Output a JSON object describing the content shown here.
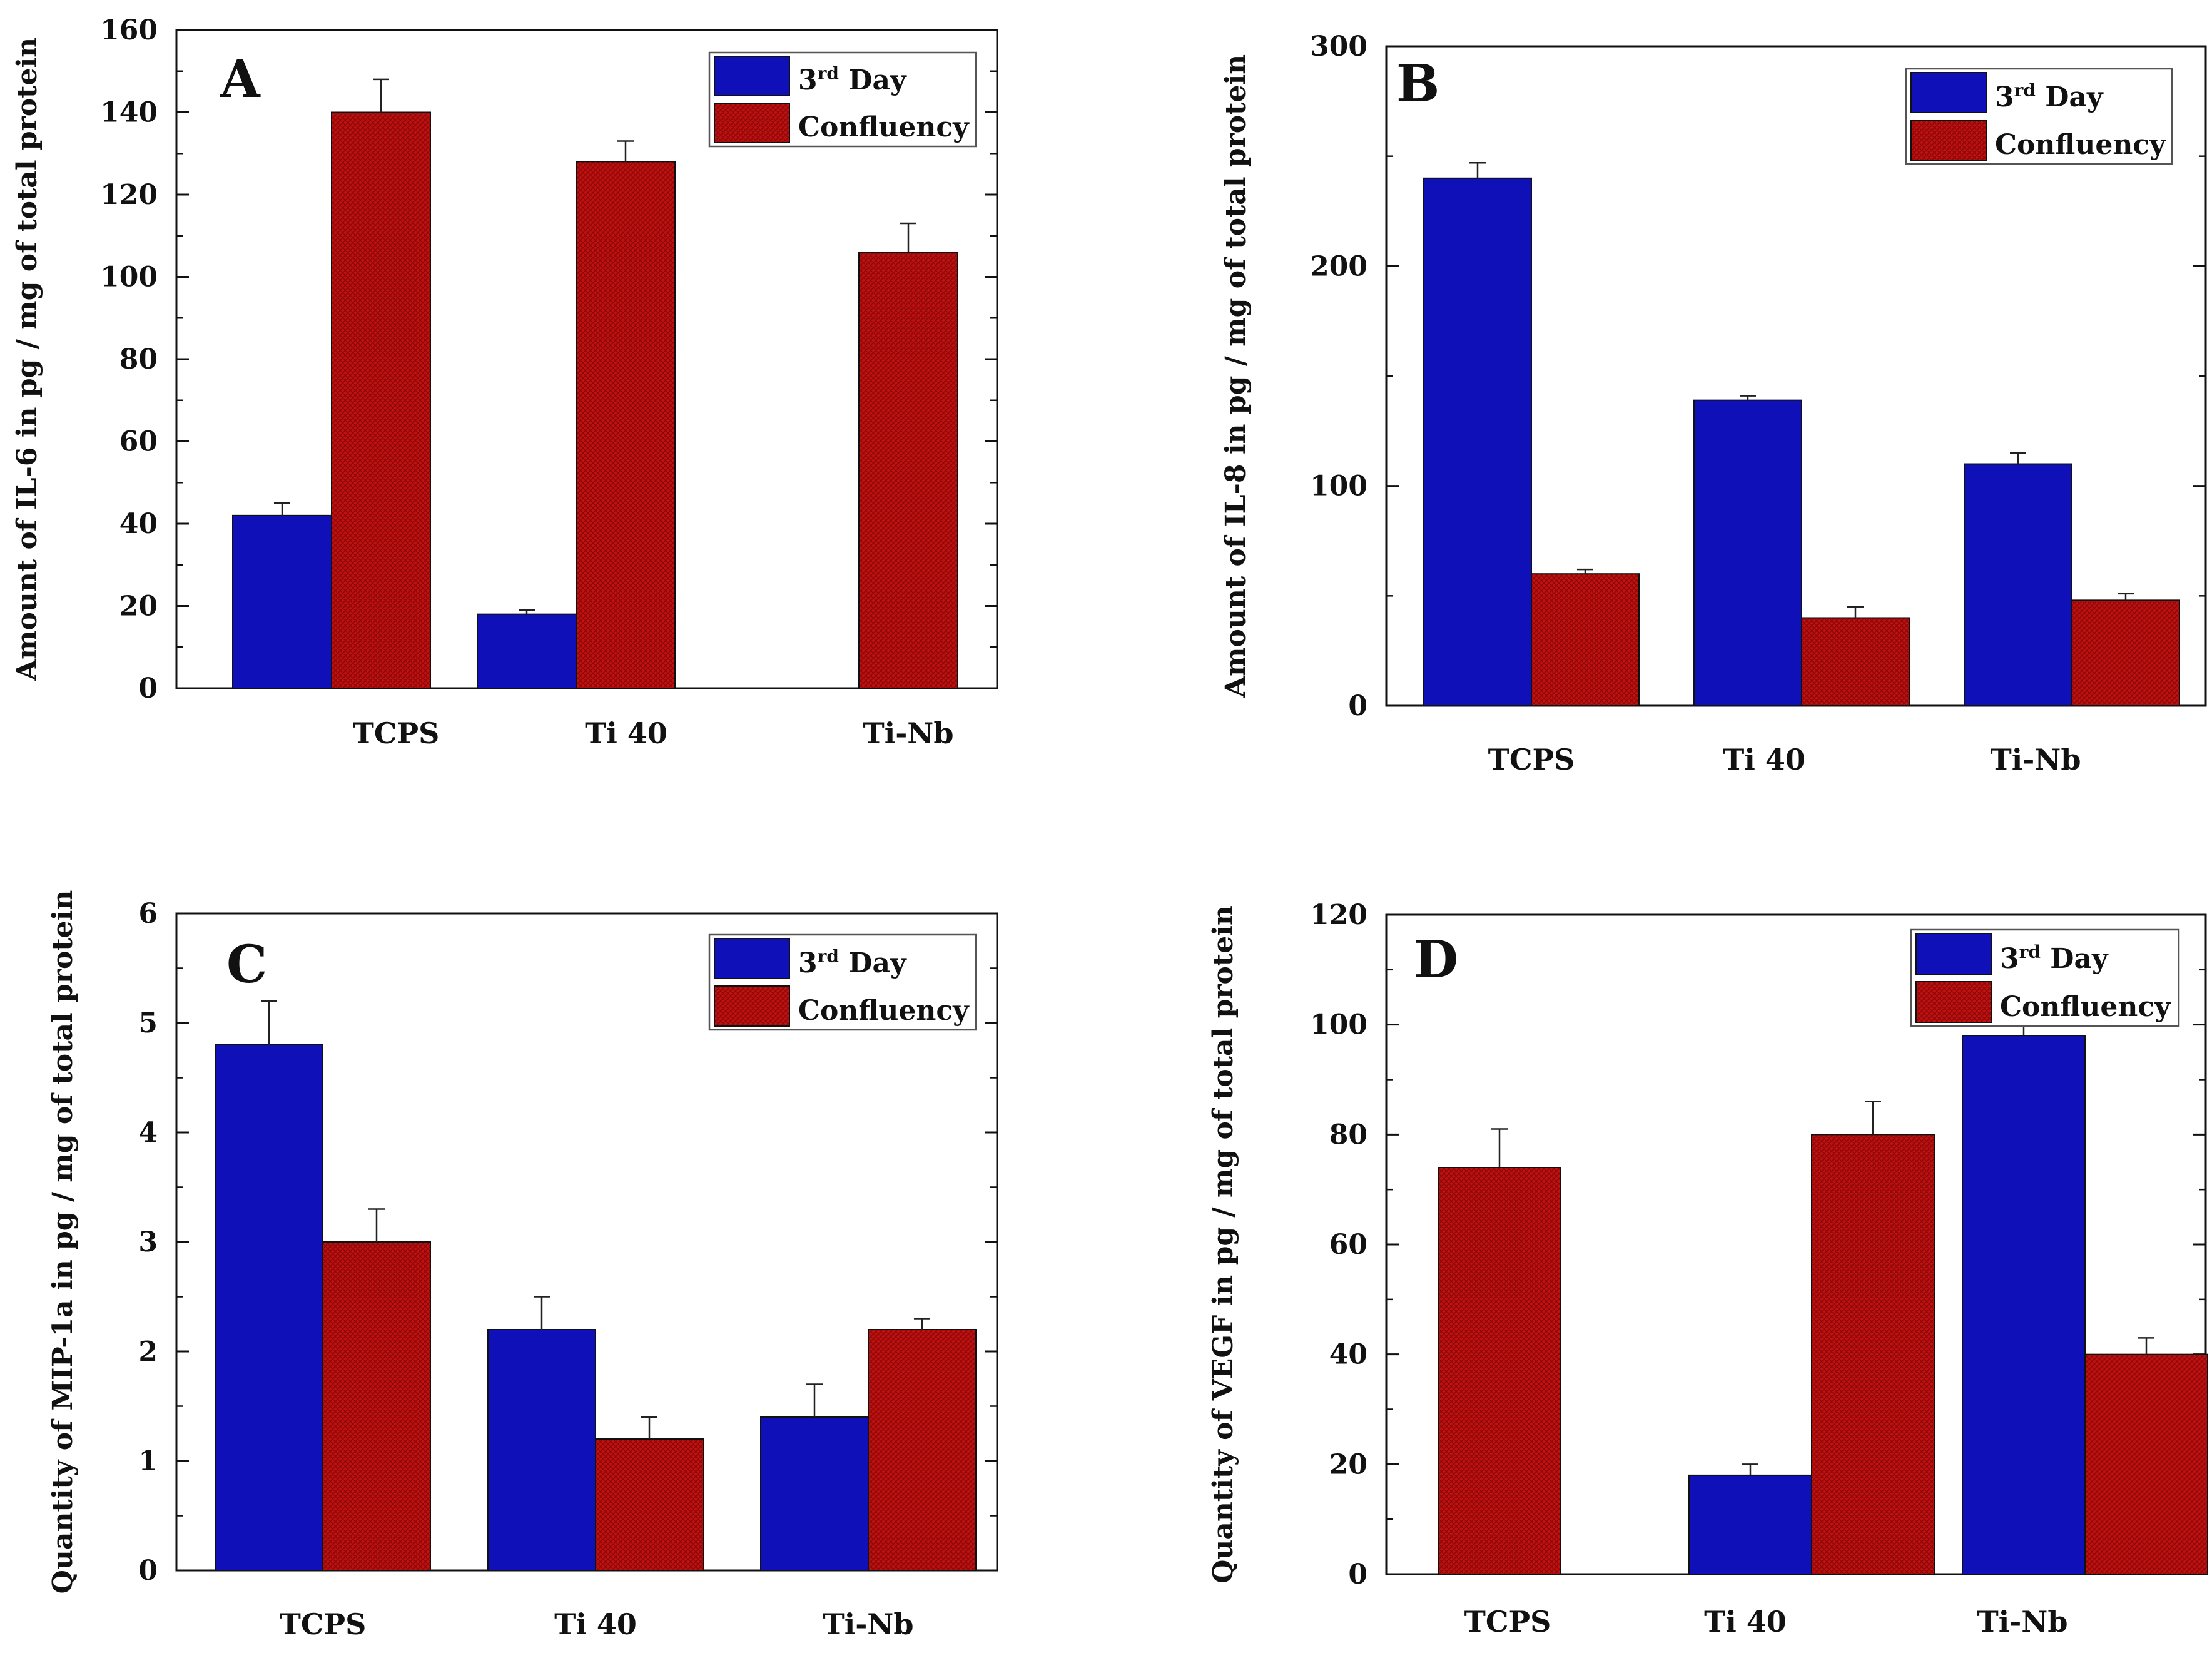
{
  "colors": {
    "series1": "#1010b8",
    "series2": "#c01010",
    "axis": "#111111",
    "background": "#ffffff"
  },
  "legend_labels": {
    "day_base": "3",
    "day_sup": "rd",
    "day_suffix": " Day",
    "confluency": "Confluency"
  },
  "chart_data": [
    {
      "panel": "A",
      "type": "bar",
      "ylabel": "Amount of IL-6 in pg / mg of total protein",
      "ylim": [
        0,
        160
      ],
      "yticks": [
        0,
        20,
        40,
        60,
        80,
        100,
        120,
        140,
        160
      ],
      "categories": [
        "TCPS",
        "Ti 40",
        "Ti-Nb"
      ],
      "series": [
        {
          "name": "3rd Day",
          "values": [
            42,
            18,
            null
          ],
          "errors": [
            3,
            1,
            null
          ],
          "color": "#1010b8"
        },
        {
          "name": "Confluency",
          "values": [
            140,
            128,
            106
          ],
          "errors": [
            8,
            5,
            7
          ],
          "color": "#c01010"
        }
      ],
      "legend_position": "top-right",
      "grid": false
    },
    {
      "panel": "B",
      "type": "bar",
      "ylabel": "Amount of IL-8 in pg / mg of total protein",
      "ylim": [
        0,
        300
      ],
      "yticks": [
        0,
        100,
        200,
        300
      ],
      "categories": [
        "TCPS",
        "Ti 40",
        "Ti-Nb"
      ],
      "series": [
        {
          "name": "3rd Day",
          "values": [
            240,
            139,
            110
          ],
          "errors": [
            7,
            2,
            5
          ],
          "color": "#1010b8"
        },
        {
          "name": "Confluency",
          "values": [
            60,
            40,
            48
          ],
          "errors": [
            2,
            5,
            3
          ],
          "color": "#c01010"
        }
      ],
      "legend_position": "top-right",
      "grid": false
    },
    {
      "panel": "C",
      "type": "bar",
      "ylabel": "Quantity of MIP-1a in pg / mg of total protein",
      "ylim": [
        0,
        6
      ],
      "yticks": [
        0,
        1,
        2,
        3,
        4,
        5,
        6
      ],
      "categories": [
        "TCPS",
        "Ti 40",
        "Ti-Nb"
      ],
      "series": [
        {
          "name": "3rd Day",
          "values": [
            4.8,
            2.2,
            1.4
          ],
          "errors": [
            0.4,
            0.3,
            0.3
          ],
          "color": "#1010b8"
        },
        {
          "name": "Confluency",
          "values": [
            3.0,
            1.2,
            2.2
          ],
          "errors": [
            0.3,
            0.2,
            0.1
          ],
          "color": "#c01010"
        }
      ],
      "legend_position": "top-right",
      "grid": false
    },
    {
      "panel": "D",
      "type": "bar",
      "ylabel": "Quantity of VEGF in pg / mg of total protein",
      "ylim": [
        0,
        120
      ],
      "yticks": [
        0,
        20,
        40,
        60,
        80,
        100,
        120
      ],
      "categories": [
        "TCPS",
        "Ti 40",
        "Ti-Nb"
      ],
      "series": [
        {
          "name": "3rd Day",
          "values": [
            null,
            18,
            98
          ],
          "errors": [
            null,
            2,
            2
          ],
          "color": "#1010b8"
        },
        {
          "name": "Confluency",
          "values": [
            74,
            80,
            40
          ],
          "errors": [
            7,
            6,
            3
          ],
          "color": "#c01010"
        }
      ],
      "legend_position": "top-right",
      "grid": false
    }
  ]
}
